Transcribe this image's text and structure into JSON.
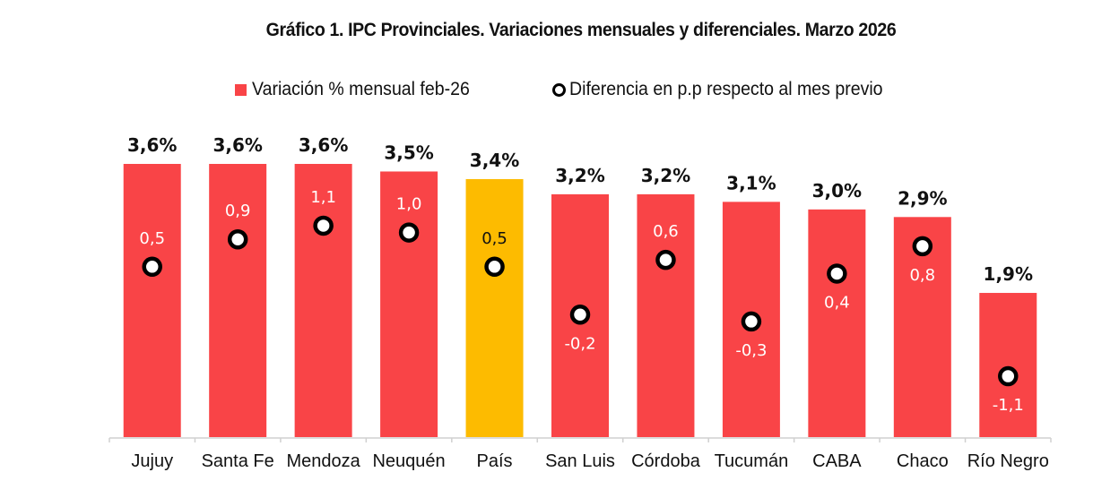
{
  "chart_data": {
    "type": "bar",
    "title": "Gráfico 1. IPC Provinciales. Variaciones mensuales y diferenciales. Marzo 2026",
    "xlabel": "",
    "ylabel": "",
    "grid": false,
    "legend_position": "top-center",
    "categories": [
      "Jujuy",
      "Santa Fe",
      "Mendoza",
      "Neuquén",
      "País",
      "San Luis",
      "Córdoba",
      "Tucumán",
      "CABA",
      "Chaco",
      "Río Negro"
    ],
    "series": [
      {
        "name": "Variación % mensual feb-26",
        "kind": "bar",
        "values": [
          3.6,
          3.6,
          3.6,
          3.5,
          3.4,
          3.2,
          3.2,
          3.1,
          3.0,
          2.9,
          1.9
        ],
        "labels": [
          "3,6%",
          "3,6%",
          "3,6%",
          "3,5%",
          "3,4%",
          "3,2%",
          "3,2%",
          "3,1%",
          "3,0%",
          "2,9%",
          "1,9%"
        ],
        "color": "#f94447",
        "highlight_category": "País",
        "highlight_color": "#fdbb00"
      },
      {
        "name": "Diferencia en p.p respecto al mes previo",
        "kind": "marker",
        "axis": "secondary",
        "values": [
          0.5,
          0.9,
          1.1,
          1.0,
          0.5,
          -0.2,
          0.6,
          -0.3,
          0.4,
          0.8,
          -1.1
        ],
        "labels": [
          "0,5",
          "0,9",
          "1,1",
          "1,0",
          "0,5",
          "-0,2",
          "0,6",
          "-0,3",
          "0,4",
          "0,8",
          "-1,1"
        ],
        "label_position": [
          "above",
          "above",
          "above",
          "above",
          "above",
          "below",
          "above",
          "below",
          "below",
          "below",
          "below"
        ],
        "marker_fill": "#ffffff",
        "marker_stroke": "#000000"
      }
    ],
    "ylim": [
      0,
      3.6
    ],
    "y2lim": [
      -1.1,
      1.1
    ]
  },
  "legend": {
    "bar_label": "Variación % mensual feb-26",
    "dot_label": "Diferencia en p.p respecto al mes previo"
  }
}
